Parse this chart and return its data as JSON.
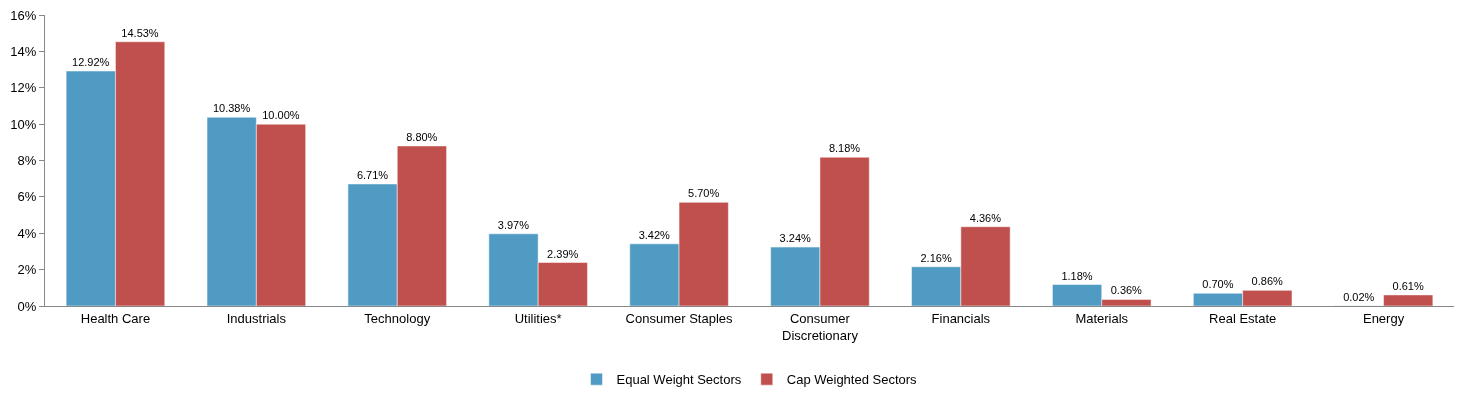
{
  "chart_data": {
    "type": "bar",
    "categories": [
      "Health Care",
      "Industrials",
      "Technology",
      "Utilities*",
      "Consumer Staples",
      "Consumer Discretionary",
      "Financials",
      "Materials",
      "Real Estate",
      "Energy"
    ],
    "series": [
      {
        "name": "Equal Weight Sectors",
        "color": "#4f9bc3",
        "values": [
          12.92,
          10.38,
          6.71,
          3.97,
          3.42,
          3.24,
          2.16,
          1.18,
          0.7,
          0.02
        ],
        "value_labels": [
          "12.92%",
          "10.38%",
          "6.71%",
          "3.97%",
          "3.42%",
          "3.24%",
          "2.16%",
          "1.18%",
          "0.70%",
          "0.02%"
        ]
      },
      {
        "name": "Cap Weighted Sectors",
        "color": "#c0504d",
        "values": [
          14.53,
          10.0,
          8.8,
          2.39,
          5.7,
          8.18,
          4.36,
          0.36,
          0.86,
          0.61
        ],
        "value_labels": [
          "14.53%",
          "10.00%",
          "8.80%",
          "2.39%",
          "5.70%",
          "8.18%",
          "4.36%",
          "0.36%",
          "0.86%",
          "0.61%"
        ]
      }
    ],
    "ylim": [
      0,
      16
    ],
    "yticks": [
      {
        "value": 0,
        "label": "0%"
      },
      {
        "value": 2,
        "label": "2%"
      },
      {
        "value": 4,
        "label": "4%"
      },
      {
        "value": 6,
        "label": "6%"
      },
      {
        "value": 8,
        "label": "8%"
      },
      {
        "value": 10,
        "label": "10%"
      },
      {
        "value": 12,
        "label": "12%"
      },
      {
        "value": 14,
        "label": "14%"
      },
      {
        "value": 16,
        "label": "16%"
      }
    ],
    "legend": "bottom"
  }
}
